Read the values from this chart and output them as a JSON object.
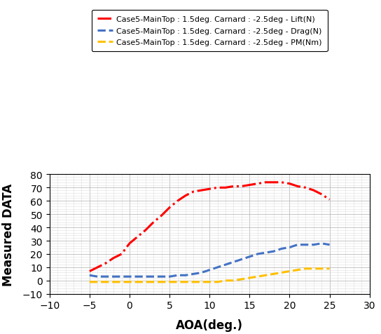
{
  "lift_aoa": [
    -5,
    -4,
    -3,
    -2,
    -1,
    0,
    1,
    2,
    3,
    4,
    5,
    6,
    7,
    8,
    9,
    10,
    11,
    12,
    13,
    14,
    15,
    16,
    17,
    18,
    19,
    20,
    21,
    22,
    23,
    24,
    25
  ],
  "lift_vals": [
    7,
    10,
    13,
    17,
    20,
    28,
    33,
    38,
    44,
    49,
    55,
    60,
    64,
    67,
    68,
    69,
    70,
    70,
    71,
    71,
    72,
    73,
    74,
    74,
    74,
    73,
    71,
    70,
    68,
    65,
    61
  ],
  "drag_aoa": [
    -5,
    -4,
    -3,
    -2,
    -1,
    0,
    1,
    2,
    3,
    4,
    5,
    6,
    7,
    8,
    9,
    10,
    11,
    12,
    13,
    14,
    15,
    16,
    17,
    18,
    19,
    20,
    21,
    22,
    23,
    24,
    25
  ],
  "drag_vals": [
    4,
    3,
    3,
    3,
    3,
    3,
    3,
    3,
    3,
    3,
    3,
    4,
    4,
    5,
    6,
    8,
    10,
    12,
    14,
    16,
    18,
    20,
    21,
    22,
    24,
    25,
    27,
    27,
    27,
    28,
    27
  ],
  "pm_aoa": [
    -5,
    -4,
    -3,
    -2,
    -1,
    0,
    1,
    2,
    3,
    4,
    5,
    6,
    7,
    8,
    9,
    10,
    11,
    12,
    13,
    14,
    15,
    16,
    17,
    18,
    19,
    20,
    21,
    22,
    23,
    24,
    25
  ],
  "pm_vals": [
    -1,
    -1,
    -1,
    -1,
    -1,
    -1,
    -1,
    -1,
    -1,
    -1,
    -1,
    -1,
    -1,
    -1,
    -1,
    -1,
    -1,
    0,
    0,
    1,
    2,
    3,
    4,
    5,
    6,
    7,
    8,
    9,
    9,
    9,
    9
  ],
  "lift_color": "#FF0000",
  "drag_color": "#4472C4",
  "pm_color": "#FFC000",
  "lift_label": "Case5-MainTop : 1.5deg. Carnard : -2.5deg - Lift(N)",
  "drag_label": "Case5-MainTop : 1.5deg. Carnard : -2.5deg - Drag(N)",
  "pm_label": "Case5-MainTop : 1.5deg. Carnard : -2.5deg - PM(Nm)",
  "xlabel": "AOA(deg.)",
  "ylabel": "Measured DATA",
  "xlim": [
    -10,
    30
  ],
  "ylim": [
    -10,
    80
  ],
  "xticks": [
    -10,
    -5,
    0,
    5,
    10,
    15,
    20,
    25,
    30
  ],
  "yticks": [
    -10,
    0,
    10,
    20,
    30,
    40,
    50,
    60,
    70,
    80
  ],
  "figsize": [
    5.44,
    4.77
  ],
  "dpi": 100,
  "bg_color": "#FFFFFF",
  "plot_bg_color": "#FFFFFF",
  "grid_color": "#BBBBBB",
  "grid_minor_color": "#DDDDDD"
}
